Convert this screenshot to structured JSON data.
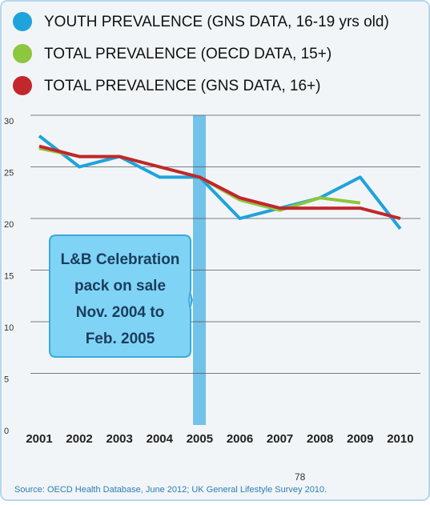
{
  "chart_data": {
    "type": "line",
    "categories": [
      "2001",
      "2002",
      "2003",
      "2004",
      "2005",
      "2006",
      "2007",
      "2008",
      "2009",
      "2010"
    ],
    "series": [
      {
        "name": "YOUTH PREVALENCE (GNS DATA, 16-19 yrs old)",
        "color": "#1ea3dc",
        "values": [
          28,
          25,
          26,
          24,
          24,
          20,
          21,
          22,
          24,
          19
        ]
      },
      {
        "name": "TOTAL PREVALENCE (OECD DATA, 15+)",
        "color": "#8dc63f",
        "values": [
          26.8,
          26,
          26,
          25,
          24,
          21.8,
          20.8,
          22,
          21.5,
          null
        ]
      },
      {
        "name": "TOTAL PREVALENCE (GNS DATA, 16+)",
        "color": "#c1272d",
        "values": [
          27,
          26,
          26,
          25,
          24,
          22,
          21,
          21,
          21,
          20
        ]
      }
    ],
    "ylim": [
      0,
      30
    ],
    "yticks": [
      0,
      5,
      10,
      15,
      20,
      25,
      30
    ],
    "grid": true,
    "annotation": [
      "L&B Celebration",
      "pack on sale",
      "Nov. 2004 to",
      "Feb. 2005"
    ],
    "source": "Source: OECD Health Database, June 2012; UK General Lifestyle Survey 2010.",
    "page_number": "78"
  }
}
